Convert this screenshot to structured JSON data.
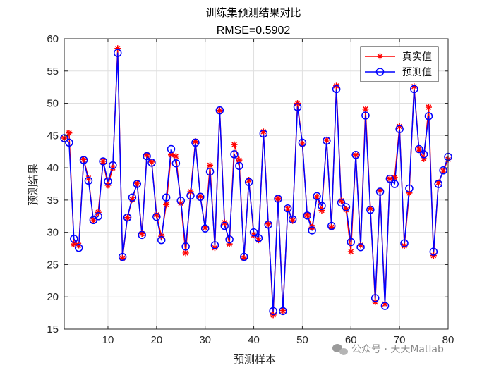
{
  "chart_data": {
    "type": "line",
    "title": "训练集预测结果对比",
    "subtitle": "RMSE=0.5902",
    "xlabel": "预测样本",
    "ylabel": "预测结果",
    "xlim": [
      1,
      80
    ],
    "ylim": [
      15,
      60
    ],
    "xticks": [
      10,
      20,
      30,
      40,
      50,
      60,
      70,
      80
    ],
    "yticks": [
      15,
      20,
      25,
      30,
      35,
      40,
      45,
      50,
      55,
      60
    ],
    "grid": true,
    "legend_position": "top-right",
    "x": [
      1,
      2,
      3,
      4,
      5,
      6,
      7,
      8,
      9,
      10,
      11,
      12,
      13,
      14,
      15,
      16,
      17,
      18,
      19,
      20,
      21,
      22,
      23,
      24,
      25,
      26,
      27,
      28,
      29,
      30,
      31,
      32,
      33,
      34,
      35,
      36,
      37,
      38,
      39,
      40,
      41,
      42,
      43,
      44,
      45,
      46,
      47,
      48,
      49,
      50,
      51,
      52,
      53,
      54,
      55,
      56,
      57,
      58,
      59,
      60,
      61,
      62,
      63,
      64,
      65,
      66,
      67,
      68,
      69,
      70,
      71,
      72,
      73,
      74,
      75,
      76,
      77,
      78,
      79,
      80
    ],
    "series": [
      {
        "name": "真实值",
        "color": "#ff0000",
        "marker": "asterisk",
        "values": [
          44.6,
          45.4,
          28.2,
          28.0,
          41.3,
          38.4,
          31.8,
          33.1,
          41.0,
          37.3,
          40.0,
          58.5,
          26.0,
          32.3,
          35.1,
          37.6,
          29.8,
          42.0,
          40.9,
          32.7,
          29.4,
          34.3,
          42.0,
          41.8,
          34.5,
          26.8,
          36.3,
          44.1,
          35.6,
          30.7,
          40.4,
          27.6,
          48.9,
          31.5,
          28.2,
          43.6,
          41.2,
          26.0,
          38.1,
          29.6,
          28.8,
          45.6,
          31.3,
          17.2,
          35.3,
          17.9,
          33.6,
          31.8,
          50.0,
          43.7,
          32.7,
          30.8,
          35.5,
          33.4,
          44.3,
          30.8,
          52.7,
          34.9,
          33.5,
          27.0,
          42.0,
          28.0,
          49.1,
          33.7,
          19.2,
          36.5,
          18.9,
          38.3,
          38.5,
          46.4,
          27.9,
          36.1,
          52.6,
          42.9,
          41.4,
          49.4,
          26.4,
          37.7,
          39.5,
          41.3
        ]
      },
      {
        "name": "预测值",
        "color": "#0000ff",
        "marker": "circle",
        "values": [
          44.6,
          43.9,
          29.0,
          27.6,
          41.2,
          38.0,
          31.9,
          32.5,
          41.0,
          37.9,
          40.4,
          57.8,
          26.2,
          32.3,
          35.4,
          37.5,
          29.6,
          41.8,
          40.8,
          32.4,
          28.8,
          35.4,
          42.9,
          40.7,
          34.9,
          27.8,
          35.7,
          43.9,
          35.5,
          30.6,
          39.4,
          28.0,
          48.9,
          31.0,
          28.9,
          42.1,
          40.3,
          26.2,
          37.8,
          30.0,
          29.1,
          45.3,
          31.2,
          17.8,
          35.2,
          17.8,
          33.7,
          32.0,
          49.4,
          43.9,
          32.6,
          30.3,
          35.6,
          34.1,
          44.2,
          31.0,
          52.2,
          34.6,
          33.9,
          28.5,
          42.0,
          27.7,
          48.1,
          33.5,
          19.8,
          36.3,
          18.6,
          38.3,
          37.5,
          46.0,
          28.3,
          36.8,
          52.2,
          42.9,
          42.1,
          48.0,
          27.0,
          37.5,
          39.6,
          41.7
        ]
      }
    ]
  },
  "watermark": {
    "icon": "wechat-icon",
    "text": "公众号 · 天天Matlab"
  }
}
